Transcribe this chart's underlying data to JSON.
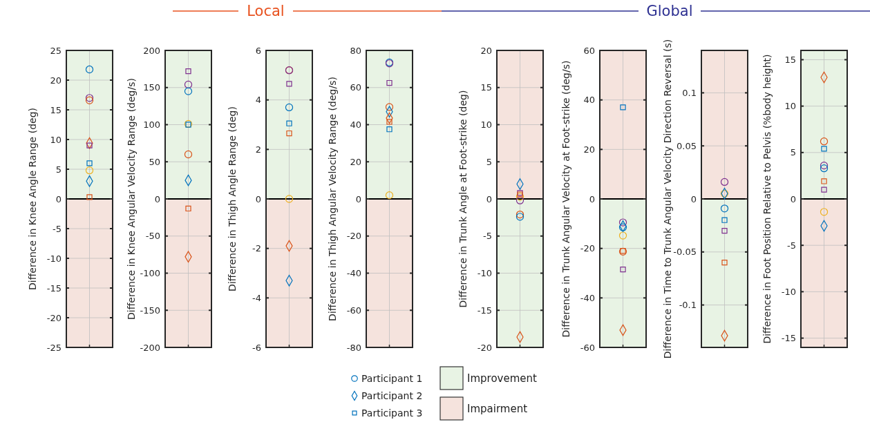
{
  "chart_data": [
    {
      "type": "scatter",
      "ylabel": "Difference in Knee Angle Range (deg)",
      "annotations": [
        "Local"
      ],
      "categories": [
        null
      ],
      "ylim": [
        -25,
        25
      ],
      "yticks": [
        -25,
        -20,
        -15,
        -10,
        -5,
        0,
        5,
        10,
        15,
        20,
        25
      ],
      "grid": true,
      "legend": "bottom",
      "bands": [
        {
          "axis": "y",
          "from": 0,
          "to": 25,
          "label": "Improvement",
          "color": "#e8f3e4"
        },
        {
          "axis": "y",
          "from": -25,
          "to": 0,
          "label": "Impairment",
          "color": "#f5e3dd"
        }
      ],
      "ref_lines": [
        {
          "axis": "y",
          "value": 0,
          "color": "#000000"
        }
      ],
      "series": [
        {
          "name": "Participant 1",
          "marker": "circle",
          "color": "#0072bd",
          "values": [
            21.8
          ]
        },
        {
          "marker": "circle",
          "color": "#7e2f8e",
          "values": [
            17
          ]
        },
        {
          "marker": "circle",
          "color": "#d95319",
          "values": [
            16.6
          ]
        },
        {
          "marker": "circle",
          "color": "#edb120",
          "values": [
            4.8
          ]
        },
        {
          "marker": "diamond",
          "color": "#d95319",
          "values": [
            9.4
          ]
        },
        {
          "name": "Participant 2",
          "marker": "diamond",
          "color": "#0072bd",
          "values": [
            3
          ]
        },
        {
          "marker": "square",
          "color": "#7e2f8e",
          "values": [
            9
          ]
        },
        {
          "name": "Participant 3",
          "marker": "square",
          "color": "#0072bd",
          "values": [
            6
          ]
        },
        {
          "marker": "square",
          "color": "#d95319",
          "values": [
            0.3
          ]
        }
      ]
    },
    {
      "type": "scatter",
      "ylabel": "Difference in Knee Angular Velocity Range (deg/s)",
      "categories": [
        null
      ],
      "ylim": [
        -200,
        200
      ],
      "yticks": [
        -200,
        -150,
        -100,
        -50,
        0,
        50,
        100,
        150,
        200
      ],
      "grid": true,
      "bands": [
        {
          "axis": "y",
          "from": 0,
          "to": 200,
          "color": "#e8f3e4"
        },
        {
          "axis": "y",
          "from": -200,
          "to": 0,
          "color": "#f5e3dd"
        }
      ],
      "ref_lines": [
        {
          "axis": "y",
          "value": 0,
          "color": "#000000"
        }
      ],
      "series": [
        {
          "marker": "circle",
          "color": "#7e2f8e",
          "values": [
            154
          ]
        },
        {
          "marker": "circle",
          "color": "#0072bd",
          "values": [
            145
          ]
        },
        {
          "marker": "circle",
          "color": "#edb120",
          "values": [
            101
          ]
        },
        {
          "marker": "circle",
          "color": "#d95319",
          "values": [
            60
          ]
        },
        {
          "marker": "diamond",
          "color": "#0072bd",
          "values": [
            25
          ]
        },
        {
          "marker": "diamond",
          "color": "#d95319",
          "values": [
            -78
          ]
        },
        {
          "marker": "square",
          "color": "#7e2f8e",
          "values": [
            172
          ]
        },
        {
          "marker": "square",
          "color": "#0072bd",
          "values": [
            100
          ]
        },
        {
          "marker": "square",
          "color": "#d95319",
          "values": [
            -13
          ]
        }
      ]
    },
    {
      "type": "scatter",
      "ylabel": "Difference in Thigh Angle Range (deg)",
      "categories": [
        null
      ],
      "ylim": [
        -6,
        6
      ],
      "yticks": [
        -6,
        -4,
        -2,
        0,
        2,
        4,
        6
      ],
      "grid": true,
      "bands": [
        {
          "axis": "y",
          "from": 0,
          "to": 6,
          "color": "#e8f3e4"
        },
        {
          "axis": "y",
          "from": -6,
          "to": 0,
          "color": "#f5e3dd"
        }
      ],
      "ref_lines": [
        {
          "axis": "y",
          "value": 0,
          "color": "#000000"
        }
      ],
      "series": [
        {
          "marker": "circle",
          "color": "#d95319",
          "values": [
            5.2
          ]
        },
        {
          "marker": "circle",
          "color": "#7e2f8e",
          "values": [
            5.2
          ]
        },
        {
          "marker": "circle",
          "color": "#0072bd",
          "values": [
            3.7
          ]
        },
        {
          "marker": "circle",
          "color": "#edb120",
          "values": [
            0
          ]
        },
        {
          "marker": "diamond",
          "color": "#d95319",
          "values": [
            -1.9
          ]
        },
        {
          "marker": "diamond",
          "color": "#0072bd",
          "values": [
            -3.3
          ]
        },
        {
          "marker": "square",
          "color": "#7e2f8e",
          "values": [
            4.65
          ]
        },
        {
          "marker": "square",
          "color": "#0072bd",
          "values": [
            3.05
          ]
        },
        {
          "marker": "square",
          "color": "#d95319",
          "values": [
            2.65
          ]
        }
      ]
    },
    {
      "type": "scatter",
      "ylabel": "Difference in Thigh Angular  Velocity Range (deg/s)",
      "categories": [
        null
      ],
      "ylim": [
        -80,
        80
      ],
      "yticks": [
        -80,
        -60,
        -40,
        -20,
        0,
        20,
        40,
        60,
        80
      ],
      "grid": true,
      "bands": [
        {
          "axis": "y",
          "from": 0,
          "to": 80,
          "color": "#e8f3e4"
        },
        {
          "axis": "y",
          "from": -80,
          "to": 0,
          "color": "#f5e3dd"
        }
      ],
      "ref_lines": [
        {
          "axis": "y",
          "value": 0,
          "color": "#000000"
        }
      ],
      "series": [
        {
          "marker": "circle",
          "color": "#0072bd",
          "values": [
            73.5
          ]
        },
        {
          "marker": "circle",
          "color": "#7e2f8e",
          "values": [
            73
          ]
        },
        {
          "marker": "circle",
          "color": "#d95319",
          "values": [
            49.5
          ]
        },
        {
          "marker": "circle",
          "color": "#edb120",
          "values": [
            2
          ]
        },
        {
          "marker": "diamond",
          "color": "#0072bd",
          "values": [
            47
          ]
        },
        {
          "marker": "diamond",
          "color": "#d95319",
          "values": [
            43.5
          ]
        },
        {
          "marker": "square",
          "color": "#7e2f8e",
          "values": [
            62.5
          ]
        },
        {
          "marker": "square",
          "color": "#d95319",
          "values": [
            41.5
          ]
        },
        {
          "marker": "square",
          "color": "#0072bd",
          "values": [
            37.5
          ]
        }
      ]
    },
    {
      "type": "scatter",
      "ylabel": "Difference in Trunk Angle at Foot-strike (deg)",
      "annotations": [
        "Global"
      ],
      "categories": [
        null
      ],
      "ylim": [
        -20,
        20
      ],
      "yticks": [
        -20,
        -15,
        -10,
        -5,
        0,
        5,
        10,
        15,
        20
      ],
      "grid": true,
      "bands": [
        {
          "axis": "y",
          "from": 0,
          "to": 20,
          "color": "#f5e3dd"
        },
        {
          "axis": "y",
          "from": -20,
          "to": 0,
          "color": "#e8f3e4"
        }
      ],
      "ref_lines": [
        {
          "axis": "y",
          "value": 0,
          "color": "#000000"
        }
      ],
      "series": [
        {
          "marker": "circle",
          "color": "#edb120",
          "values": [
            0.3
          ]
        },
        {
          "marker": "circle",
          "color": "#7e2f8e",
          "values": [
            -0.2
          ]
        },
        {
          "marker": "circle",
          "color": "#d95319",
          "values": [
            -2.1
          ]
        },
        {
          "marker": "circle",
          "color": "#0072bd",
          "values": [
            -2.4
          ]
        },
        {
          "marker": "diamond",
          "color": "#0072bd",
          "values": [
            2
          ]
        },
        {
          "marker": "diamond",
          "color": "#d95319",
          "values": [
            -18.6
          ]
        },
        {
          "marker": "square",
          "color": "#7e2f8e",
          "values": [
            0.8
          ]
        },
        {
          "marker": "square",
          "color": "#d95319",
          "values": [
            0.6
          ]
        }
      ]
    },
    {
      "type": "scatter",
      "ylabel": "Difference in Trunk  Angular Velocity at Foot-strike (deg/s)",
      "categories": [
        null
      ],
      "ylim": [
        -60,
        60
      ],
      "yticks": [
        -60,
        -40,
        -20,
        0,
        20,
        40,
        60
      ],
      "grid": true,
      "bands": [
        {
          "axis": "y",
          "from": 0,
          "to": 60,
          "color": "#f5e3dd"
        },
        {
          "axis": "y",
          "from": -60,
          "to": 0,
          "color": "#e8f3e4"
        }
      ],
      "ref_lines": [
        {
          "axis": "y",
          "value": 0,
          "color": "#000000"
        }
      ],
      "series": [
        {
          "marker": "circle",
          "color": "#7e2f8e",
          "values": [
            -9.5
          ]
        },
        {
          "marker": "circle",
          "color": "#0072bd",
          "values": [
            -11.5
          ]
        },
        {
          "marker": "circle",
          "color": "#edb120",
          "values": [
            -14.8
          ]
        },
        {
          "marker": "circle",
          "color": "#d95319",
          "values": [
            -21.3
          ]
        },
        {
          "marker": "diamond",
          "color": "#0072bd",
          "values": [
            -11
          ]
        },
        {
          "marker": "diamond",
          "color": "#d95319",
          "values": [
            -53
          ]
        },
        {
          "marker": "square",
          "color": "#0072bd",
          "values": [
            37
          ]
        },
        {
          "marker": "square",
          "color": "#d95319",
          "values": [
            -21
          ]
        },
        {
          "marker": "square",
          "color": "#7e2f8e",
          "values": [
            -28.5
          ]
        }
      ]
    },
    {
      "type": "scatter",
      "ylabel": "Difference in Time to Trunk Angular Velocity Direction Reversal (s)",
      "categories": [
        null
      ],
      "ylim": [
        -0.14,
        0.14
      ],
      "yticks": [
        -0.1,
        -0.05,
        0,
        0.05,
        0.1
      ],
      "grid": true,
      "bands": [
        {
          "axis": "y",
          "from": 0,
          "to": 0.14,
          "color": "#f5e3dd"
        },
        {
          "axis": "y",
          "from": -0.14,
          "to": 0,
          "color": "#e8f3e4"
        }
      ],
      "ref_lines": [
        {
          "axis": "y",
          "value": 0,
          "color": "#000000"
        }
      ],
      "series": [
        {
          "marker": "circle",
          "color": "#7e2f8e",
          "values": [
            0.016
          ]
        },
        {
          "marker": "circle",
          "color": "#edb120",
          "values": [
            0.005
          ]
        },
        {
          "marker": "circle",
          "color": "#0072bd",
          "values": [
            -0.009
          ]
        },
        {
          "marker": "diamond",
          "color": "#0072bd",
          "values": [
            0.005
          ]
        },
        {
          "marker": "diamond",
          "color": "#d95319",
          "values": [
            -0.129
          ]
        },
        {
          "marker": "square",
          "color": "#0072bd",
          "values": [
            -0.02
          ]
        },
        {
          "marker": "square",
          "color": "#7e2f8e",
          "values": [
            -0.03
          ]
        },
        {
          "marker": "square",
          "color": "#d95319",
          "values": [
            -0.06
          ]
        }
      ]
    },
    {
      "type": "scatter",
      "ylabel": "Difference in Foot Position Relative to Pelvis (%body height)",
      "categories": [
        null
      ],
      "ylim": [
        -16,
        16
      ],
      "yticks": [
        -15,
        -10,
        -5,
        0,
        5,
        10,
        15
      ],
      "grid": true,
      "bands": [
        {
          "axis": "y",
          "from": 0,
          "to": 16,
          "color": "#e8f3e4"
        },
        {
          "axis": "y",
          "from": -16,
          "to": 0,
          "color": "#f5e3dd"
        }
      ],
      "ref_lines": [
        {
          "axis": "y",
          "value": 0,
          "color": "#000000"
        }
      ],
      "series": [
        {
          "marker": "circle",
          "color": "#d95319",
          "values": [
            6.2
          ]
        },
        {
          "marker": "circle",
          "color": "#7e2f8e",
          "values": [
            3.6
          ]
        },
        {
          "marker": "circle",
          "color": "#0072bd",
          "values": [
            3.3
          ]
        },
        {
          "marker": "circle",
          "color": "#edb120",
          "values": [
            -1.4
          ]
        },
        {
          "marker": "diamond",
          "color": "#d95319",
          "values": [
            13.1
          ]
        },
        {
          "marker": "diamond",
          "color": "#0072bd",
          "values": [
            -2.9
          ]
        },
        {
          "marker": "square",
          "color": "#0072bd",
          "values": [
            5.4
          ]
        },
        {
          "marker": "square",
          "color": "#d95319",
          "values": [
            1.9
          ]
        },
        {
          "marker": "square",
          "color": "#7e2f8e",
          "values": [
            1
          ]
        }
      ]
    }
  ]
}
